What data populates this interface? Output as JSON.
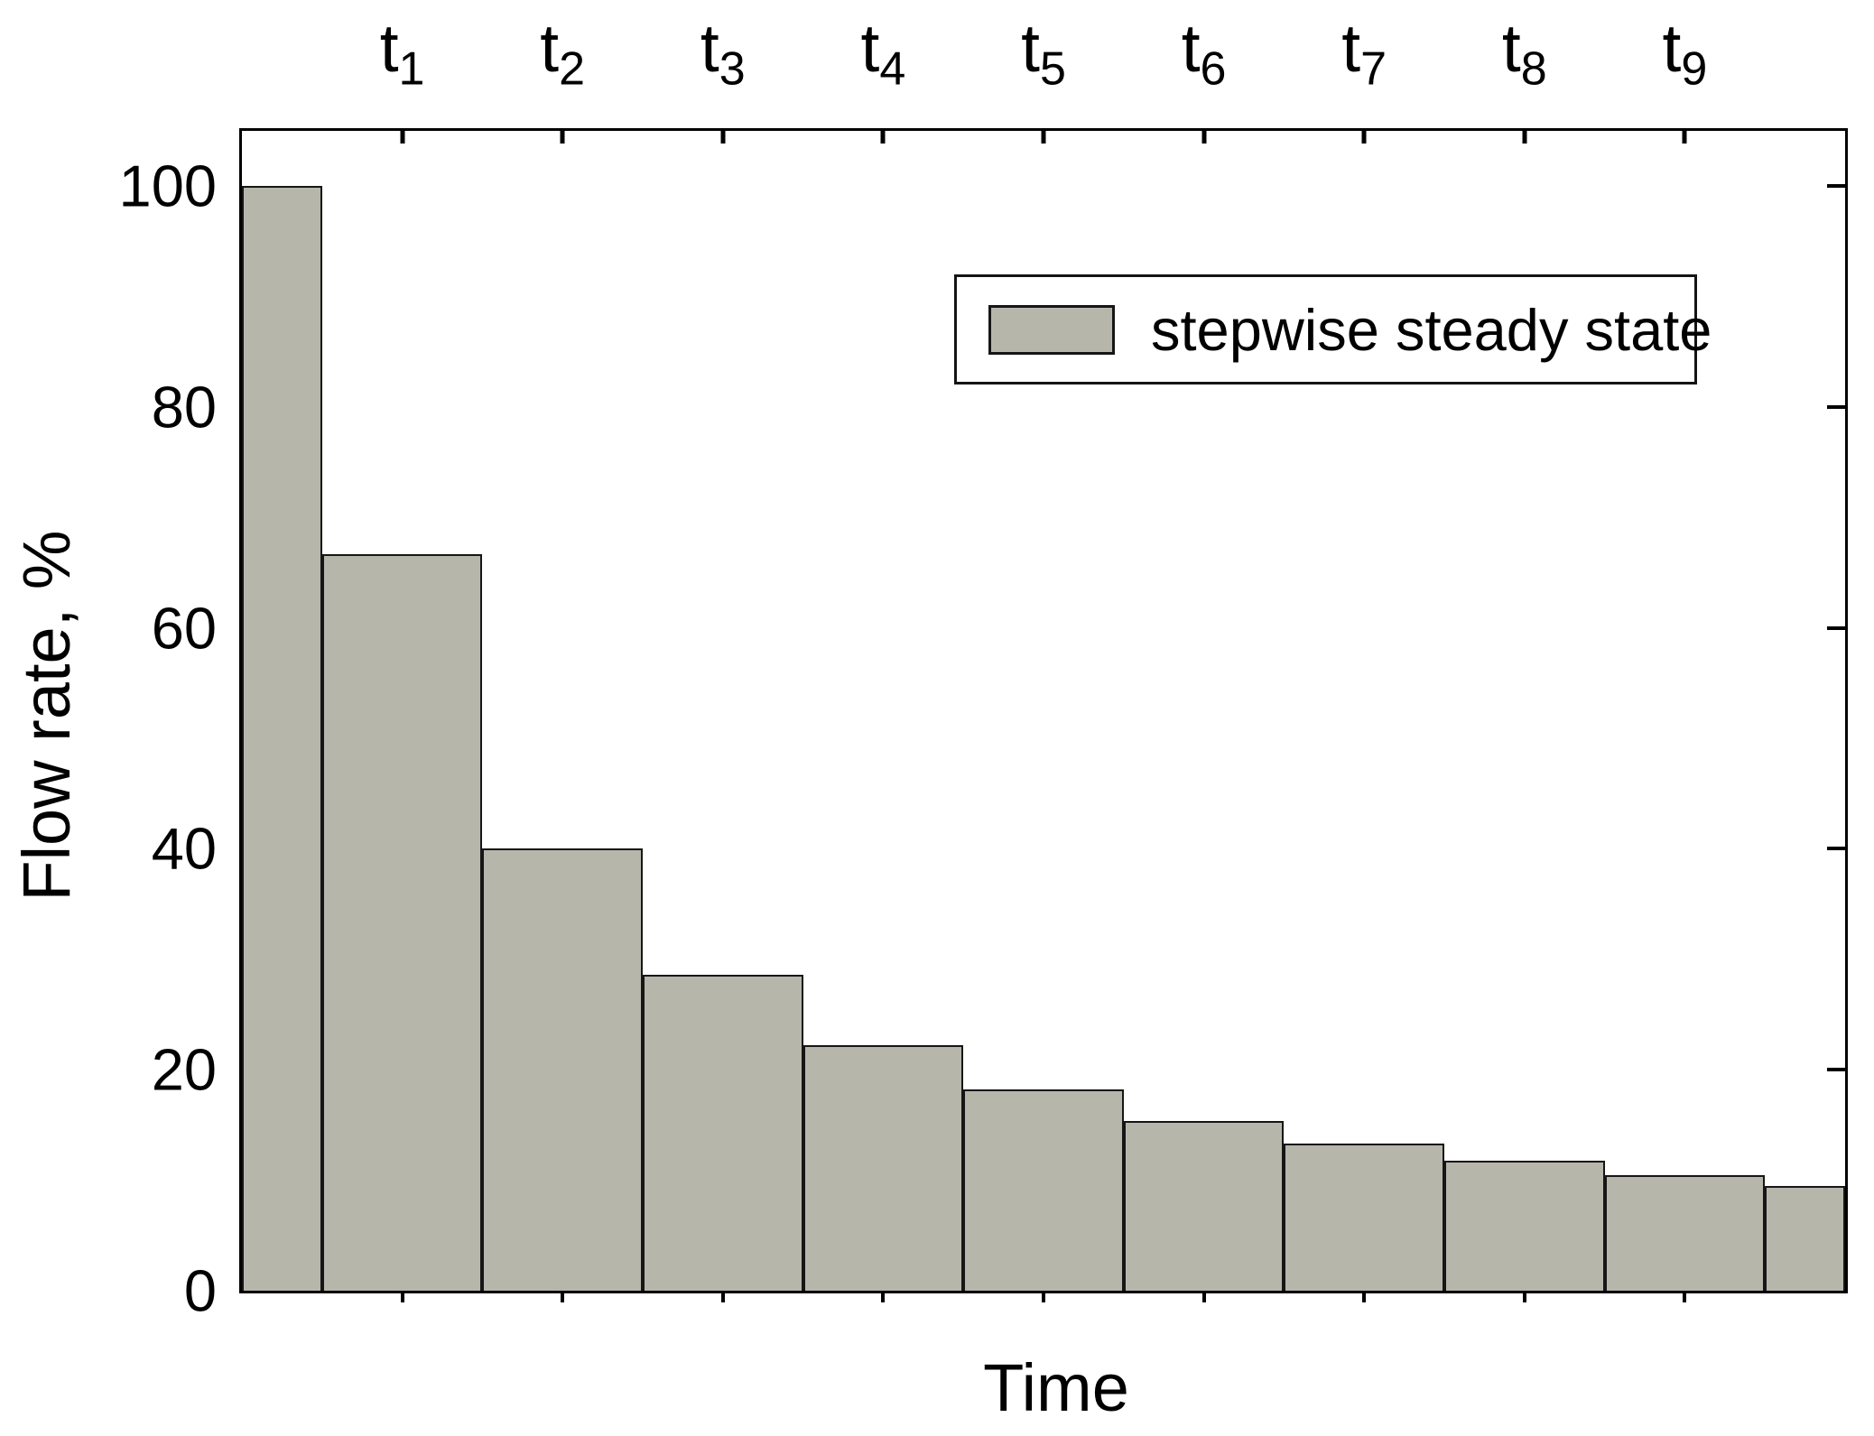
{
  "figure": {
    "background_color": "#ffffff",
    "axis_color": "#000000",
    "text_color": "#000000"
  },
  "axes": {
    "xlabel": "Time",
    "ylabel": "Flow rate, %",
    "y_tick_labels": [
      "100",
      "80",
      "60",
      "40",
      "20",
      "0"
    ],
    "top_tick_labels": [
      "t1",
      "t2",
      "t3",
      "t4",
      "t5",
      "t6",
      "t7",
      "t8",
      "t9"
    ]
  },
  "legend": {
    "label": "stepwise steady state",
    "swatch_color": "#b7b6ab",
    "swatch_border_color": "#161616"
  },
  "chart_data": {
    "type": "bar",
    "subtype": "stepwise-histogram",
    "title": "",
    "xlabel": "Time",
    "ylabel": "Flow rate, %",
    "legend_entries": [
      "stepwise steady state"
    ],
    "legend_position": "upper right",
    "grid": false,
    "xlim": [
      0,
      10
    ],
    "ylim": [
      0,
      105
    ],
    "y_ticks": [
      0,
      20,
      40,
      60,
      80,
      100
    ],
    "top_x_ticks": [
      1,
      2,
      3,
      4,
      5,
      6,
      7,
      8,
      9
    ],
    "top_x_tick_labels": [
      {
        "base": "t",
        "sub": "1"
      },
      {
        "base": "t",
        "sub": "2"
      },
      {
        "base": "t",
        "sub": "3"
      },
      {
        "base": "t",
        "sub": "4"
      },
      {
        "base": "t",
        "sub": "5"
      },
      {
        "base": "t",
        "sub": "6"
      },
      {
        "base": "t",
        "sub": "7"
      },
      {
        "base": "t",
        "sub": "8"
      },
      {
        "base": "t",
        "sub": "9"
      }
    ],
    "series": [
      {
        "name": "stepwise steady state",
        "bar_color": "#b7b6ab",
        "bar_edge_color": "#161616",
        "bars": [
          {
            "t_start": 0,
            "t_end": 0.5,
            "value": 100
          },
          {
            "t_start": 0.5,
            "t_end": 1.5,
            "value": 66.7
          },
          {
            "t_start": 1.5,
            "t_end": 2.5,
            "value": 40
          },
          {
            "t_start": 2.5,
            "t_end": 3.5,
            "value": 28.6
          },
          {
            "t_start": 3.5,
            "t_end": 4.5,
            "value": 22.2
          },
          {
            "t_start": 4.5,
            "t_end": 5.5,
            "value": 18.2
          },
          {
            "t_start": 5.5,
            "t_end": 6.5,
            "value": 15.4
          },
          {
            "t_start": 6.5,
            "t_end": 7.5,
            "value": 13.3
          },
          {
            "t_start": 7.5,
            "t_end": 8.5,
            "value": 11.8
          },
          {
            "t_start": 8.5,
            "t_end": 9.5,
            "value": 10.5
          },
          {
            "t_start": 9.5,
            "t_end": 10,
            "value": 9.5
          }
        ]
      }
    ]
  }
}
